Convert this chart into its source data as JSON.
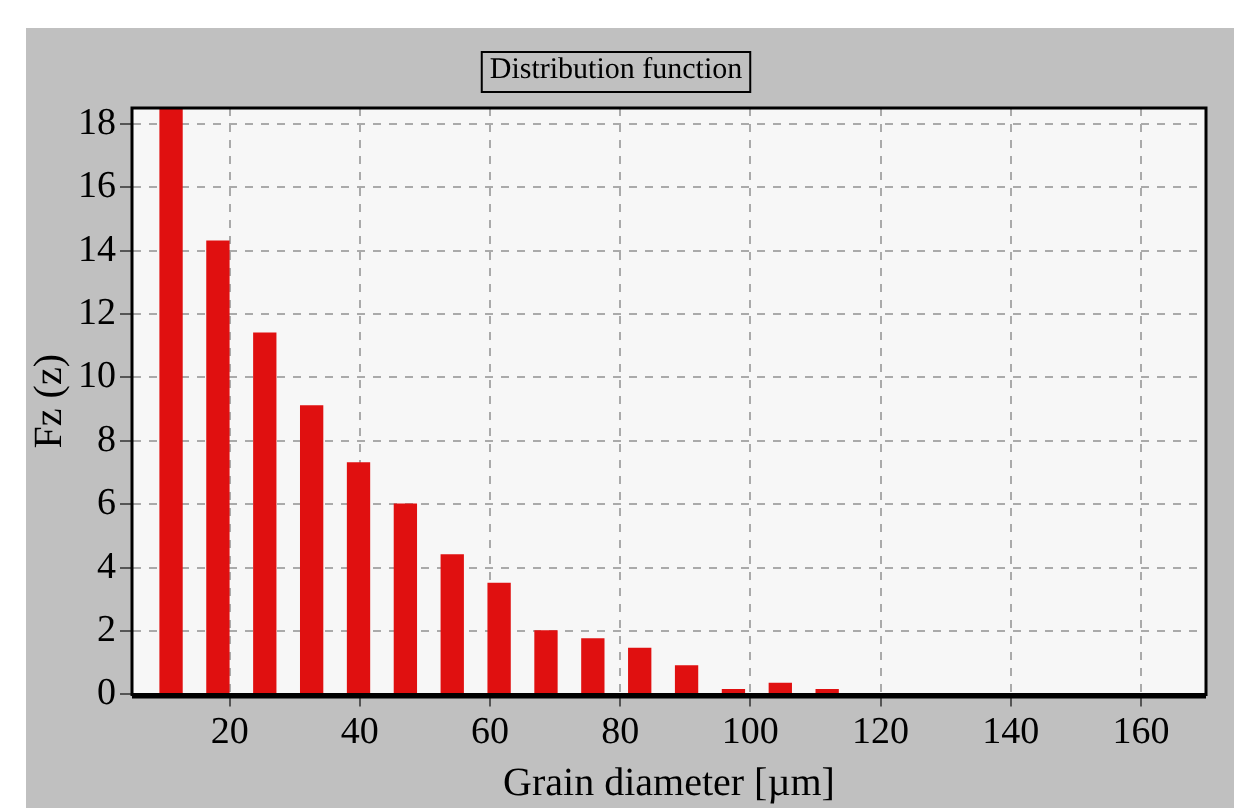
{
  "chart_data": {
    "type": "bar",
    "title": "Distribution function",
    "xlabel": "Grain diameter [µm]",
    "ylabel": "Fz (z)",
    "x": [
      11,
      18.2,
      25.4,
      32.6,
      39.8,
      47,
      54.2,
      61.4,
      68.6,
      75.8,
      83,
      90.2,
      97.4,
      104.6,
      111.8
    ],
    "values": [
      18.5,
      14.3,
      11.4,
      9.1,
      7.3,
      6.0,
      4.4,
      3.5,
      2.0,
      1.75,
      1.45,
      0.9,
      0.15,
      0.35,
      0.15
    ],
    "color": "#e01010",
    "xlim": [
      5,
      170
    ],
    "xticks": [
      20,
      40,
      60,
      80,
      100,
      120,
      140,
      160
    ],
    "ylim": [
      0,
      18.5
    ],
    "yticks": [
      0,
      2,
      4,
      6,
      8,
      10,
      12,
      14,
      16,
      18
    ],
    "grid": true,
    "legend": false
  }
}
